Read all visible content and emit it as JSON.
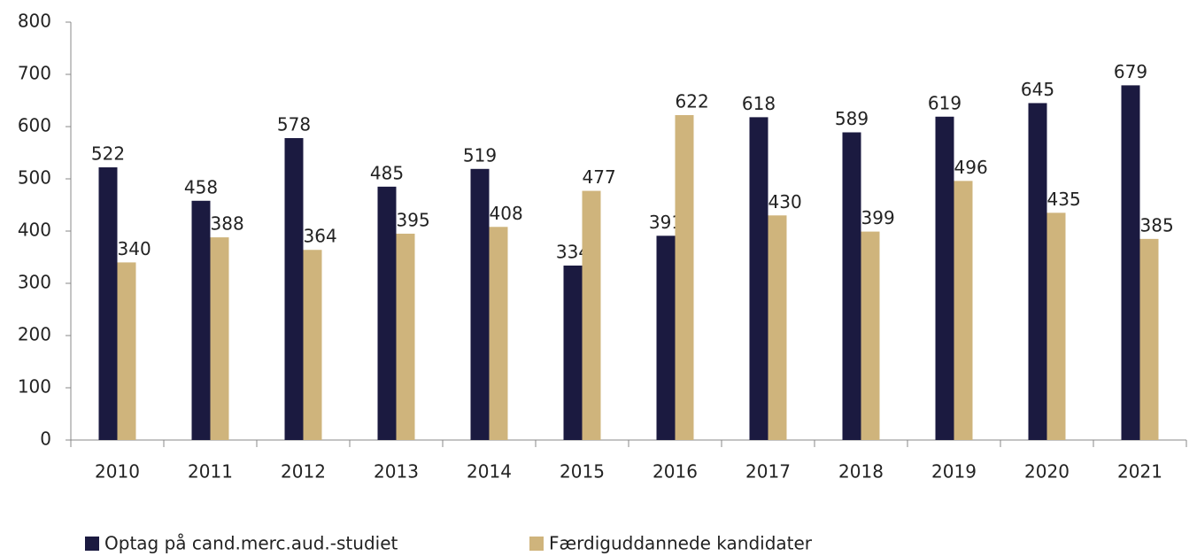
{
  "chart_data": {
    "type": "bar",
    "categories": [
      "2010",
      "2011",
      "2012",
      "2013",
      "2014",
      "2015",
      "2016",
      "2017",
      "2018",
      "2019",
      "2020",
      "2021"
    ],
    "series": [
      {
        "name": "Optag på cand.merc.aud.-studiet",
        "color": "#1b1a40",
        "values": [
          522,
          458,
          578,
          485,
          519,
          334,
          391,
          618,
          589,
          619,
          645,
          679
        ]
      },
      {
        "name": "Færdiguddannede kandidater",
        "color": "#cfb47c",
        "values": [
          340,
          388,
          364,
          395,
          408,
          477,
          622,
          430,
          399,
          496,
          435,
          385
        ]
      }
    ],
    "ylim": [
      0,
      800
    ],
    "yticks": [
      0,
      100,
      200,
      300,
      400,
      500,
      600,
      700,
      800
    ],
    "grid": false,
    "legend": "bottom"
  }
}
